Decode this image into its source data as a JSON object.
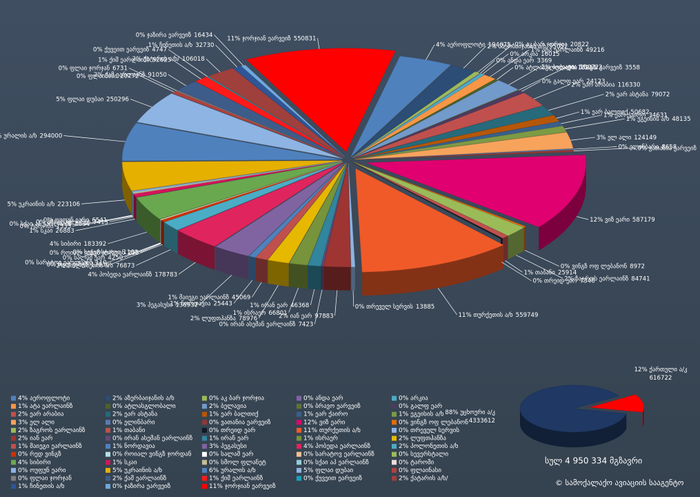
{
  "chart_data": [
    {
      "type": "pie3d",
      "labels": [
        "4% აეროფლოტი",
        "2% აზერბაიჯანის ა/ხ",
        "0% აკ ბარ ჯორჯია",
        "0% ანდა ეარ",
        "0% არკია",
        "1% ატა ეარლაინზ",
        "0% ატლასგლობალი",
        "2% ბელავია",
        "0% ბრავო ეარვეიზ",
        "0% გალფ ეარ",
        "2% ეარ არაბია",
        "2% ეარ ასტანა",
        "1% ეარ ბალთიქ",
        "1% ეარ ქაირო",
        "1% ეგეისის ა/ხ",
        "3% ელ ალი",
        "0% ელინბარი",
        "0% ვათანია ეარვეიზ",
        "12% ვიზ ეარი",
        "0% ვინგზ ოფ ლებანონ",
        "2% ზაგროს ეარლაინზ",
        "1% თაბანი",
        "0% თრეიდ ეარ",
        "11% თურქეთის ა/ხ",
        "0% თრეველ სერვის",
        "2% იან ეარ",
        "0% ირან ასემან ეარლაინზ",
        "1% ირან ეარ",
        "1% ისრაერ",
        "2% ლუფთჰანზა",
        "1% მაიეგი ეარლაინზ",
        "1% ნორდავია",
        "3% პეგასუსი",
        "4% პობედა ეარლაინზ",
        "2% პოლონეთის ა/ხ",
        "0% რედ ვინგზ",
        "0% როიალ ვინგზ ჯორდან",
        "0% სალამ ეარ",
        "0% სარატოვ ეარლაინზ",
        "0% სევერსტალი",
        "4% სიბირი",
        "1% სკაი",
        "0% სმოლ ფლანეტ",
        "0% სქაი აპ ეარლაინზ",
        "0% ტარომი",
        "0% ოუფუნ ეარი",
        "5% უკრაინის ა/ხ",
        "6% ურალის ა/ხ",
        "5% ფლაი დუბაი",
        "0% ფლაინასი",
        "0% ფლაი ჯორჯან",
        "2% ქამ ეარლაინზ",
        "1% ქიშ ეარლაინზ",
        "0% ქუვეით ეარვეიზ",
        "2% ქატარის ა/ხ/",
        "1% ჩინეთის ა/ხ",
        "0% ჯაზირა ეარვეიზ",
        "11% ჯორჯიან ეარვეიზ"
      ],
      "values": [
        194675,
        95052,
        20822,
        3369,
        16015,
        49216,
        13211,
        100722,
        3558,
        24123,
        116330,
        79072,
        50682,
        34631,
        48135,
        124149,
        8658,
        16285,
        587179,
        8972,
        84741,
        25914,
        7346,
        559749,
        13885,
        97883,
        7423,
        46368,
        66801,
        78976,
        45069,
        25443,
        136937,
        178783,
        76873,
        17836,
        255,
        4250,
        110,
        1100,
        183392,
        26883,
        7413,
        4834,
        1333,
        6541,
        223106,
        294000,
        250296,
        20772,
        6731,
        91050,
        52625,
        4747,
        106018,
        32730,
        16434,
        550831
      ],
      "colors": [
        "#4f81bd",
        "#2c4d75",
        "#9bbb59",
        "#8064a2",
        "#4bacc6",
        "#f79646",
        "#4f6228",
        "#729aca",
        "#5f7530",
        "#4d3b62",
        "#c0504d",
        "#276a7c",
        "#b65708",
        "#3a5f8b",
        "#7d9a44",
        "#f7a35c",
        "#5c7bb0",
        "#8c3a38",
        "#e0006f",
        "#e46c0a",
        "#9bbb59",
        "#c0504d",
        "#111a26",
        "#f05a28",
        "#8eb4e3",
        "#9e3532",
        "#604a7b",
        "#31859c",
        "#77933c",
        "#e6b800",
        "#c0504d",
        "#4f81bd",
        "#8064a2",
        "#e0245e",
        "#4bacc6",
        "#cc3300",
        "#b7dee8",
        "#ffffff",
        "#fac090",
        "#9bbb59",
        "#6aa84f",
        "#d4145a",
        "#c4bd97",
        "#93cddd",
        "#f2dcdb",
        "#8db3e2",
        "#e6b000",
        "#4f81bd",
        "#8eb4e3",
        "#b0413e",
        "#7f7f7f",
        "#3e5c8a",
        "#ff1a1a",
        "#17a2b8",
        "#a0403d",
        "#2f5597",
        "#6fa8dc",
        "#ff0000"
      ],
      "total": "სულ  4 950 334  მგზავრი",
      "footer": "©  სამოქალაქო ავიაციის სააგენტო"
    },
    {
      "type": "pie3d",
      "labels": [
        "88% უცხოური ა/კ",
        "12% ქართული ა/კ"
      ],
      "values": [
        4333612,
        616722
      ],
      "colors": [
        "#1f3864",
        "#ff0000"
      ]
    }
  ]
}
